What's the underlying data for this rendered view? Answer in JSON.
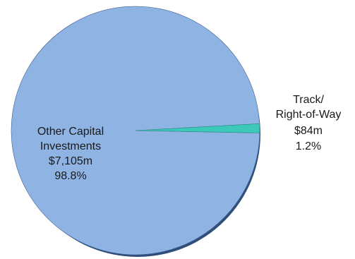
{
  "chart_data": {
    "type": "pie",
    "title": "",
    "slices": [
      {
        "name": "Other Capital Investments",
        "label_lines": [
          "Other Capital",
          "Investments"
        ],
        "value_label": "$7,105m",
        "value": 7105,
        "percent": 98.8,
        "percent_label": "98.8%",
        "color": "#8fb3e2"
      },
      {
        "name": "Track/ Right-of-Way",
        "label_lines": [
          "Track/",
          "Right-of-Way"
        ],
        "value_label": "$84m",
        "value": 84,
        "percent": 1.2,
        "percent_label": "1.2%",
        "color": "#3cc9b9"
      }
    ],
    "legend": "none",
    "style": "3d-shadow-pie"
  },
  "colors": {
    "shadow": "#2f4f7a",
    "edge": "#3e5f8f"
  }
}
